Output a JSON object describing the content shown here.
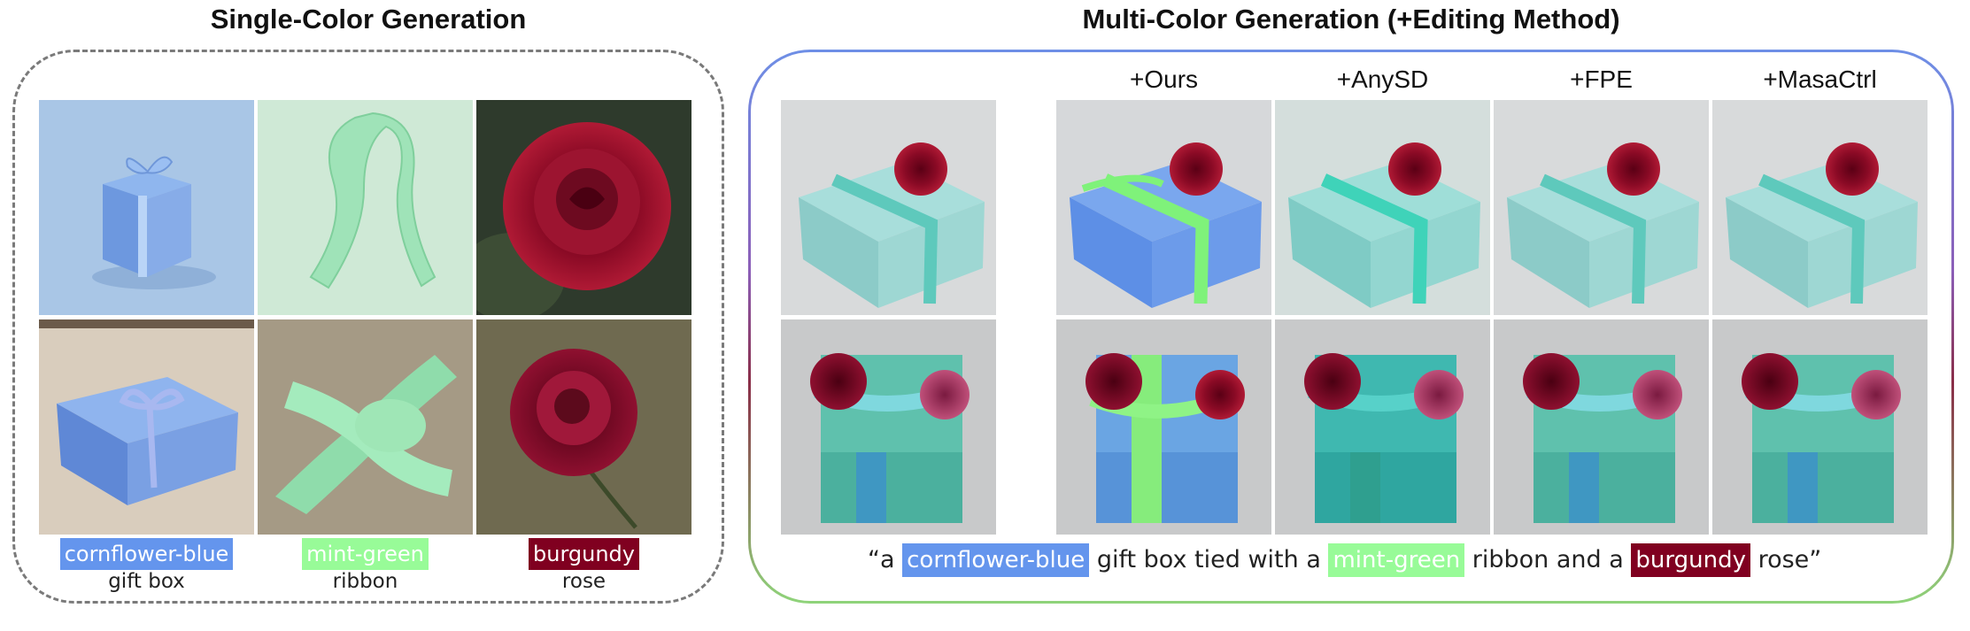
{
  "left_section": {
    "title": "Single-Color Generation",
    "captions": [
      {
        "color_word": "cornflower-blue",
        "color_hex": "#6495ed",
        "object": "gift box"
      },
      {
        "color_word": "mint-green",
        "color_hex": "#98fb98",
        "object": "ribbon"
      },
      {
        "color_word": "burgundy",
        "color_hex": "#800020",
        "object": "rose"
      }
    ]
  },
  "right_section": {
    "title": "Multi-Color Generation (+Editing Method)",
    "methods": [
      "+Ours",
      "+AnySD",
      "+FPE",
      "+MasaCtrl"
    ],
    "prompt": {
      "open": "“a",
      "c1": "cornflower-blue",
      "t1": "gift box tied with a",
      "c2": "mint-green",
      "t2": "ribbon and a",
      "c3": "burgundy",
      "close": "rose”"
    }
  },
  "colors": {
    "cornflower_blue": "#6495ed",
    "mint_green": "#98fb98",
    "burgundy": "#800020",
    "teal_box": "#8fd3cf",
    "left_border": "#7a7a7a"
  }
}
